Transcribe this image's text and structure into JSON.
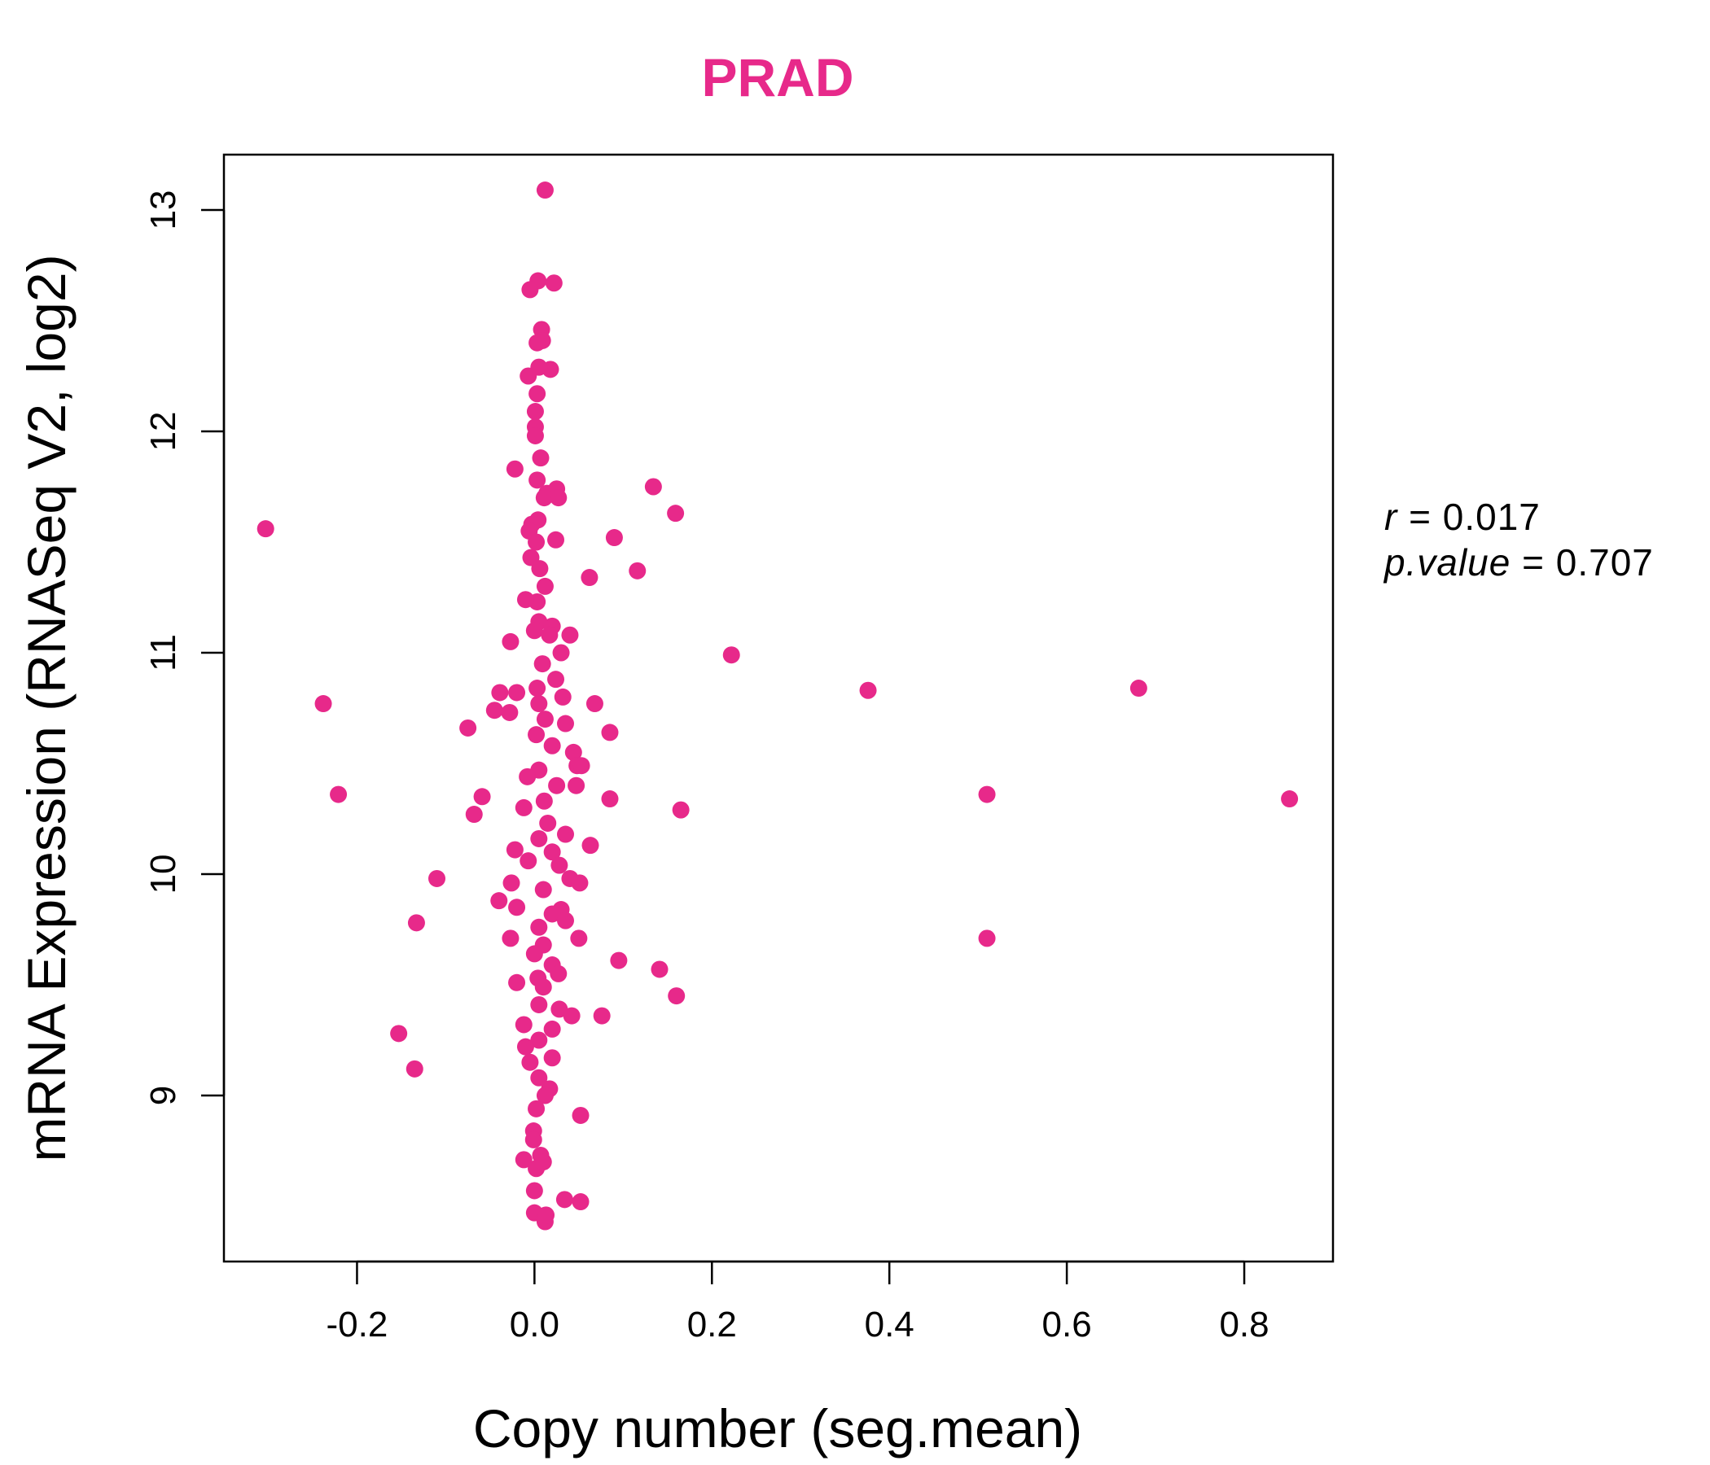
{
  "chart_data": {
    "type": "scatter",
    "title": "PRAD",
    "xlabel": "Copy number (seg.mean)",
    "ylabel": "mRNA Expression (RNASeq V2, log2)",
    "xlim": [
      -0.35,
      0.9
    ],
    "ylim": [
      8.25,
      13.25
    ],
    "x_ticks": [
      -0.2,
      0.0,
      0.2,
      0.4,
      0.6,
      0.8
    ],
    "x_tick_labels": [
      "-0.2",
      "0.0",
      "0.2",
      "0.4",
      "0.6",
      "0.8"
    ],
    "y_ticks": [
      9,
      10,
      11,
      12,
      13
    ],
    "y_tick_labels": [
      "9",
      "10",
      "11",
      "12",
      "13"
    ],
    "point_color": "#e7298a",
    "stats": {
      "r_label": "r",
      "r_value": "0.017",
      "p_label": "p.value",
      "p_value": "0.707"
    },
    "points": [
      [
        0.012,
        13.09
      ],
      [
        0.004,
        12.68
      ],
      [
        -0.005,
        12.64
      ],
      [
        0.022,
        12.67
      ],
      [
        0.008,
        12.46
      ],
      [
        0.009,
        12.41
      ],
      [
        0.003,
        12.4
      ],
      [
        0.018,
        12.28
      ],
      [
        0.005,
        12.29
      ],
      [
        -0.007,
        12.25
      ],
      [
        0.003,
        12.17
      ],
      [
        0.001,
        12.09
      ],
      [
        0.001,
        12.02
      ],
      [
        0.001,
        11.98
      ],
      [
        0.007,
        11.88
      ],
      [
        -0.022,
        11.83
      ],
      [
        0.003,
        11.78
      ],
      [
        0.014,
        11.72
      ],
      [
        0.025,
        11.74
      ],
      [
        0.011,
        11.7
      ],
      [
        0.027,
        11.7
      ],
      [
        -0.003,
        11.58
      ],
      [
        0.004,
        11.6
      ],
      [
        -0.006,
        11.55
      ],
      [
        0.002,
        11.5
      ],
      [
        0.024,
        11.51
      ],
      [
        -0.004,
        11.43
      ],
      [
        0.006,
        11.38
      ],
      [
        0.012,
        11.3
      ],
      [
        0.003,
        11.23
      ],
      [
        -0.01,
        11.24
      ],
      [
        0.005,
        11.14
      ],
      [
        0.02,
        11.12
      ],
      [
        0.0,
        11.1
      ],
      [
        0.017,
        11.08
      ],
      [
        0.04,
        11.08
      ],
      [
        -0.027,
        11.05
      ],
      [
        0.03,
        11.0
      ],
      [
        0.009,
        10.95
      ],
      [
        0.024,
        10.88
      ],
      [
        0.003,
        10.84
      ],
      [
        -0.02,
        10.82
      ],
      [
        -0.039,
        10.82
      ],
      [
        -0.045,
        10.74
      ],
      [
        0.032,
        10.8
      ],
      [
        0.005,
        10.77
      ],
      [
        -0.028,
        10.73
      ],
      [
        0.068,
        10.77
      ],
      [
        0.012,
        10.7
      ],
      [
        0.035,
        10.68
      ],
      [
        -0.075,
        10.66
      ],
      [
        0.085,
        10.64
      ],
      [
        0.002,
        10.63
      ],
      [
        0.02,
        10.58
      ],
      [
        0.044,
        10.55
      ],
      [
        0.048,
        10.49
      ],
      [
        0.053,
        10.49
      ],
      [
        0.005,
        10.47
      ],
      [
        -0.008,
        10.44
      ],
      [
        0.047,
        10.4
      ],
      [
        0.025,
        10.4
      ],
      [
        -0.059,
        10.35
      ],
      [
        0.085,
        10.34
      ],
      [
        0.011,
        10.33
      ],
      [
        -0.012,
        10.3
      ],
      [
        0.165,
        10.29
      ],
      [
        -0.068,
        10.27
      ],
      [
        0.015,
        10.23
      ],
      [
        0.035,
        10.18
      ],
      [
        0.005,
        10.16
      ],
      [
        0.063,
        10.13
      ],
      [
        -0.022,
        10.11
      ],
      [
        0.02,
        10.1
      ],
      [
        0.028,
        10.04
      ],
      [
        -0.007,
        10.06
      ],
      [
        -0.11,
        9.98
      ],
      [
        0.04,
        9.98
      ],
      [
        0.051,
        9.96
      ],
      [
        -0.026,
        9.96
      ],
      [
        0.01,
        9.93
      ],
      [
        -0.04,
        9.88
      ],
      [
        -0.02,
        9.85
      ],
      [
        0.03,
        9.84
      ],
      [
        0.02,
        9.82
      ],
      [
        0.035,
        9.79
      ],
      [
        -0.133,
        9.78
      ],
      [
        0.005,
        9.76
      ],
      [
        -0.027,
        9.71
      ],
      [
        0.05,
        9.71
      ],
      [
        0.01,
        9.68
      ],
      [
        0.0,
        9.64
      ],
      [
        0.095,
        9.61
      ],
      [
        0.141,
        9.57
      ],
      [
        0.02,
        9.59
      ],
      [
        0.027,
        9.55
      ],
      [
        0.004,
        9.53
      ],
      [
        -0.02,
        9.51
      ],
      [
        0.01,
        9.49
      ],
      [
        0.16,
        9.45
      ],
      [
        0.005,
        9.41
      ],
      [
        0.028,
        9.39
      ],
      [
        0.042,
        9.36
      ],
      [
        0.076,
        9.36
      ],
      [
        -0.012,
        9.32
      ],
      [
        0.02,
        9.3
      ],
      [
        -0.153,
        9.28
      ],
      [
        0.005,
        9.25
      ],
      [
        -0.01,
        9.22
      ],
      [
        0.02,
        9.17
      ],
      [
        -0.005,
        9.15
      ],
      [
        -0.135,
        9.12
      ],
      [
        0.005,
        9.08
      ],
      [
        0.017,
        9.03
      ],
      [
        0.012,
        9.0
      ],
      [
        0.002,
        8.94
      ],
      [
        0.052,
        8.91
      ],
      [
        -0.001,
        8.84
      ],
      [
        -0.001,
        8.8
      ],
      [
        0.007,
        8.73
      ],
      [
        -0.012,
        8.71
      ],
      [
        0.002,
        8.67
      ],
      [
        0.01,
        8.7
      ],
      [
        0.0,
        8.57
      ],
      [
        0.034,
        8.53
      ],
      [
        0.052,
        8.52
      ],
      [
        0.0,
        8.47
      ],
      [
        0.012,
        8.43
      ],
      [
        0.013,
        8.46
      ],
      [
        -0.303,
        11.56
      ],
      [
        -0.238,
        10.77
      ],
      [
        -0.221,
        10.36
      ],
      [
        0.134,
        11.75
      ],
      [
        0.159,
        11.63
      ],
      [
        0.09,
        11.52
      ],
      [
        0.116,
        11.37
      ],
      [
        0.062,
        11.34
      ],
      [
        0.222,
        10.99
      ],
      [
        0.376,
        10.83
      ],
      [
        0.681,
        10.84
      ],
      [
        0.51,
        10.36
      ],
      [
        0.851,
        10.34
      ],
      [
        0.51,
        9.71
      ]
    ]
  }
}
